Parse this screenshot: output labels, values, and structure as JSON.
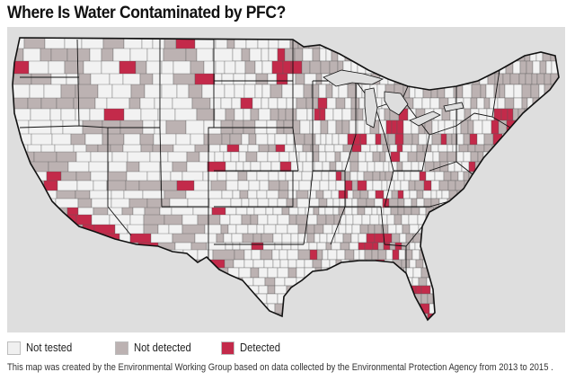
{
  "title": "Where Is Water Contaminated by PFC?",
  "map": {
    "region": "contiguous United States counties",
    "background_color": "#dedede",
    "land_colors": {
      "not_tested": "#f2f2f2",
      "not_detected": "#bcb2b2",
      "detected": "#c32a4a"
    },
    "boundary_color": "#111111"
  },
  "legend": {
    "items": [
      {
        "label": "Not tested",
        "color": "#f0f0f0"
      },
      {
        "label": "Not detected",
        "color": "#bcb2b2"
      },
      {
        "label": "Detected",
        "color": "#c32a4a"
      }
    ]
  },
  "caption": "This map was created by the Environmental Working Group based on data collected by the Environmental Protection Agency from 2013 to 2015 ."
}
